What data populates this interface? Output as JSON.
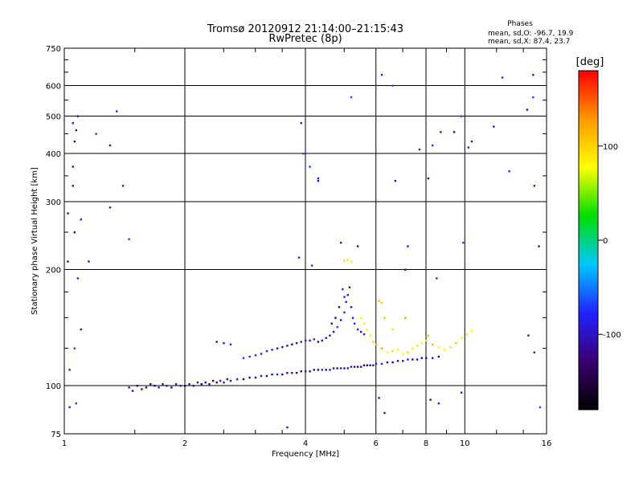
{
  "chart_data": {
    "type": "scatter",
    "title": "Tromsø 20120912 21:14:00–21:15:43",
    "subtitle": "RwPretec (8p)",
    "xlabel": "Frequency [MHz]",
    "ylabel": "Stationary phase Virtual Height [km]",
    "xscale": "log",
    "yscale": "log",
    "xlim": [
      1,
      16
    ],
    "ylim": [
      75,
      750
    ],
    "x_ticks": [
      1,
      2,
      4,
      6,
      8,
      10,
      16
    ],
    "x_tick_labels": [
      "1",
      "2",
      "4",
      "6",
      "8",
      "10",
      "16"
    ],
    "y_ticks": [
      75,
      100,
      200,
      300,
      400,
      500,
      600,
      750
    ],
    "y_tick_labels": [
      "75",
      "100",
      "200",
      "300",
      "400",
      "500",
      "600",
      "750"
    ],
    "grid": true,
    "stats": {
      "heading": "Phases",
      "line_o": "mean, sd,O: -96.7, 19.9",
      "line_x": "mean, sd,X:  87.4, 23.7"
    },
    "colorbar": {
      "label": "[deg]",
      "range": [
        -180,
        180
      ],
      "ticks": [
        -100,
        0,
        100
      ],
      "tick_labels": [
        "-100",
        "0",
        "100"
      ],
      "colors": [
        "#000000",
        "#3a0070",
        "#2222ff",
        "#00c8ff",
        "#00dd00",
        "#ffff00",
        "#ff9900",
        "#ff0000"
      ]
    },
    "point_sets": [
      {
        "description": "O-mode trace",
        "points": [
          [
            1.45,
            99
          ],
          [
            1.48,
            97
          ],
          [
            1.52,
            100
          ],
          [
            1.56,
            98
          ],
          [
            1.6,
            99
          ],
          [
            1.64,
            101
          ],
          [
            1.68,
            100
          ],
          [
            1.72,
            99
          ],
          [
            1.76,
            101
          ],
          [
            1.8,
            100
          ],
          [
            1.85,
            99
          ],
          [
            1.9,
            101
          ],
          [
            1.95,
            100
          ],
          [
            2.0,
            100
          ],
          [
            2.05,
            101
          ],
          [
            2.1,
            100
          ],
          [
            2.15,
            102
          ],
          [
            2.2,
            101
          ],
          [
            2.25,
            102
          ],
          [
            2.3,
            101
          ],
          [
            2.35,
            103
          ],
          [
            2.4,
            102
          ],
          [
            2.45,
            103
          ],
          [
            2.5,
            102
          ],
          [
            2.55,
            104
          ],
          [
            2.6,
            103
          ],
          [
            2.7,
            104
          ],
          [
            2.8,
            104
          ],
          [
            2.9,
            105
          ],
          [
            3.0,
            105
          ],
          [
            3.1,
            106
          ],
          [
            3.2,
            106
          ],
          [
            3.3,
            107
          ],
          [
            3.4,
            107
          ],
          [
            3.5,
            107
          ],
          [
            3.6,
            108
          ],
          [
            3.7,
            108
          ],
          [
            3.8,
            108
          ],
          [
            3.9,
            109
          ],
          [
            4.0,
            109
          ],
          [
            4.1,
            109
          ],
          [
            4.2,
            110
          ],
          [
            4.3,
            110
          ],
          [
            4.4,
            110
          ],
          [
            4.5,
            110
          ],
          [
            4.6,
            110
          ],
          [
            4.7,
            111
          ],
          [
            4.8,
            111
          ],
          [
            4.9,
            111
          ],
          [
            5.0,
            111
          ],
          [
            5.1,
            111
          ],
          [
            5.2,
            112
          ],
          [
            5.3,
            112
          ],
          [
            5.4,
            112
          ],
          [
            5.5,
            112
          ],
          [
            5.6,
            113
          ],
          [
            5.7,
            113
          ],
          [
            5.8,
            113
          ],
          [
            5.9,
            113
          ],
          [
            6.0,
            114
          ],
          [
            6.2,
            114
          ],
          [
            6.4,
            115
          ],
          [
            6.6,
            115
          ],
          [
            6.8,
            116
          ],
          [
            7.0,
            116
          ],
          [
            7.2,
            117
          ],
          [
            7.4,
            117
          ],
          [
            7.6,
            117
          ],
          [
            7.8,
            118
          ],
          [
            8.0,
            118
          ],
          [
            8.3,
            118
          ],
          [
            8.6,
            119
          ]
        ],
        "phase": -110
      },
      {
        "description": "upper trace",
        "points": [
          [
            2.4,
            130
          ],
          [
            2.5,
            129
          ],
          [
            2.6,
            128
          ],
          [
            2.8,
            118
          ],
          [
            2.9,
            119
          ],
          [
            3.0,
            120
          ],
          [
            3.1,
            121
          ],
          [
            3.2,
            123
          ],
          [
            3.3,
            124
          ],
          [
            3.4,
            125
          ],
          [
            3.5,
            126
          ],
          [
            3.6,
            127
          ],
          [
            3.7,
            128
          ],
          [
            3.8,
            129
          ],
          [
            3.9,
            130
          ],
          [
            4.0,
            131
          ],
          [
            4.1,
            131
          ],
          [
            4.2,
            132
          ],
          [
            4.3,
            130
          ],
          [
            4.4,
            131
          ],
          [
            4.5,
            133
          ],
          [
            4.6,
            135
          ],
          [
            4.7,
            138
          ],
          [
            4.8,
            142
          ],
          [
            4.9,
            148
          ],
          [
            5.0,
            155
          ],
          [
            5.05,
            165
          ],
          [
            5.1,
            172
          ],
          [
            5.15,
            180
          ],
          [
            4.95,
            178
          ],
          [
            5.0,
            170
          ],
          [
            4.85,
            160
          ],
          [
            4.75,
            150
          ],
          [
            4.65,
            145
          ],
          [
            5.2,
            160
          ],
          [
            5.25,
            150
          ],
          [
            5.3,
            145
          ],
          [
            5.4,
            140
          ],
          [
            5.5,
            138
          ],
          [
            5.6,
            136
          ]
        ],
        "phase": -100
      },
      {
        "description": "X-mode points",
        "points": [
          [
            5.5,
            150
          ],
          [
            5.6,
            145
          ],
          [
            5.7,
            140
          ],
          [
            5.8,
            135
          ],
          [
            5.9,
            130
          ],
          [
            6.0,
            128
          ],
          [
            6.2,
            125
          ],
          [
            6.4,
            122
          ],
          [
            6.6,
            123
          ],
          [
            6.8,
            124
          ],
          [
            7.0,
            121
          ],
          [
            7.2,
            122
          ],
          [
            7.4,
            125
          ],
          [
            7.6,
            127
          ],
          [
            7.8,
            129
          ],
          [
            8.0,
            131
          ],
          [
            8.3,
            128
          ],
          [
            8.6,
            126
          ],
          [
            8.9,
            124
          ],
          [
            9.2,
            126
          ],
          [
            9.5,
            129
          ],
          [
            9.8,
            133
          ],
          [
            10.1,
            136
          ],
          [
            10.4,
            139
          ],
          [
            5.0,
            211
          ],
          [
            5.1,
            212
          ],
          [
            5.2,
            210
          ],
          [
            6.1,
            166
          ],
          [
            6.2,
            164
          ],
          [
            6.3,
            150
          ],
          [
            6.6,
            140
          ],
          [
            7.1,
            150
          ],
          [
            8.1,
            135
          ]
        ],
        "phase": 100
      },
      {
        "description": "scattered points",
        "points": [
          [
            1.05,
            480
          ],
          [
            1.06,
            430
          ],
          [
            1.08,
            500
          ],
          [
            1.07,
            460
          ],
          [
            1.2,
            450
          ],
          [
            1.3,
            420
          ],
          [
            1.02,
            210
          ],
          [
            1.02,
            280
          ],
          [
            1.05,
            370
          ],
          [
            1.06,
            250
          ],
          [
            1.08,
            190
          ],
          [
            1.15,
            210
          ],
          [
            1.3,
            290
          ],
          [
            1.4,
            330
          ],
          [
            1.45,
            240
          ],
          [
            1.1,
            270
          ],
          [
            1.05,
            330
          ],
          [
            1.1,
            140
          ],
          [
            1.06,
            125
          ],
          [
            1.03,
            110
          ],
          [
            1.03,
            88
          ],
          [
            1.07,
            90
          ],
          [
            1.35,
            515
          ],
          [
            3.9,
            480
          ],
          [
            3.95,
            400
          ],
          [
            4.1,
            370
          ],
          [
            4.3,
            340
          ],
          [
            4.3,
            345
          ],
          [
            3.85,
            215
          ],
          [
            4.15,
            205
          ],
          [
            5.2,
            560
          ],
          [
            6.2,
            640
          ],
          [
            6.6,
            600
          ],
          [
            7.7,
            410
          ],
          [
            8.3,
            420
          ],
          [
            8.7,
            455
          ],
          [
            9.4,
            455
          ],
          [
            9.8,
            500
          ],
          [
            10.4,
            430
          ],
          [
            10.2,
            415
          ],
          [
            11.8,
            470
          ],
          [
            12.4,
            630
          ],
          [
            12.9,
            360
          ],
          [
            14.8,
            640
          ],
          [
            14.3,
            520
          ],
          [
            14.8,
            560
          ],
          [
            14.9,
            330
          ],
          [
            15.3,
            230
          ],
          [
            14.4,
            135
          ],
          [
            14.9,
            122
          ],
          [
            15.4,
            88
          ],
          [
            9.8,
            96
          ],
          [
            8.2,
            92
          ],
          [
            8.6,
            90
          ],
          [
            6.1,
            93
          ],
          [
            6.3,
            85
          ],
          [
            3.6,
            78
          ],
          [
            6.7,
            340
          ],
          [
            8.1,
            345
          ],
          [
            9.9,
            235
          ],
          [
            7.2,
            230
          ],
          [
            5.4,
            230
          ],
          [
            4.9,
            235
          ],
          [
            7.1,
            200
          ],
          [
            8.5,
            190
          ]
        ],
        "phase": -90
      }
    ]
  }
}
